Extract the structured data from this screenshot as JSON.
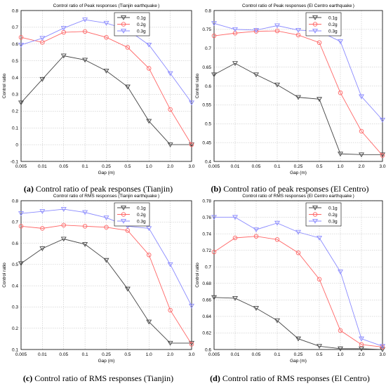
{
  "chart_data": [
    {
      "type": "line",
      "title": "Control ratio of Peak responses (Tianjin earthquake )",
      "xlabel": "Gap (m)",
      "ylabel": "Control ratio",
      "categories": [
        "0.005",
        "0.01",
        "0.05",
        "0.1",
        "0.25",
        "0.5",
        "1.0",
        "2.0",
        "3.0"
      ],
      "ylim": [
        -0.1,
        0.8
      ],
      "yticks": [
        "-0.1",
        "0",
        "0.1",
        "0.2",
        "0.3",
        "0.4",
        "0.5",
        "0.6",
        "0.7",
        "0.8"
      ],
      "grid": true,
      "legend": "top-right",
      "series": [
        {
          "name": "0.1g",
          "color": "#444444",
          "marker": "triangle-down",
          "values": [
            0.25,
            0.39,
            0.53,
            0.505,
            0.44,
            0.345,
            0.14,
            0.0,
            0.0
          ]
        },
        {
          "name": "0.2g",
          "color": "#ff6666",
          "marker": "circle",
          "values": [
            0.64,
            0.61,
            0.67,
            0.675,
            0.64,
            0.58,
            0.455,
            0.21,
            0.0
          ]
        },
        {
          "name": "0.3g",
          "color": "#8a8aff",
          "marker": "triangle-down",
          "values": [
            0.595,
            0.635,
            0.695,
            0.745,
            0.725,
            0.685,
            0.595,
            0.425,
            0.25
          ]
        }
      ],
      "caption_label": "(a)",
      "caption_text": " Control ratio of peak responses (Tianjin)"
    },
    {
      "type": "line",
      "title": "Control ratio of Peak responses (El Centro earthquake )",
      "xlabel": "Gap (m)",
      "ylabel": "Control ratio",
      "categories": [
        "0.005",
        "0.01",
        "0.05",
        "0.1",
        "0.25",
        "0.5",
        "1.0",
        "2.0",
        "3.0"
      ],
      "ylim": [
        0.4,
        0.8
      ],
      "yticks": [
        "0.4",
        "0.45",
        "0.5",
        "0.55",
        "0.6",
        "0.65",
        "0.7",
        "0.75",
        "0.8"
      ],
      "grid": true,
      "legend": "top-right",
      "series": [
        {
          "name": "0.1g",
          "color": "#444444",
          "marker": "triangle-down",
          "values": [
            0.63,
            0.66,
            0.63,
            0.603,
            0.57,
            0.565,
            0.42,
            0.418,
            0.418
          ]
        },
        {
          "name": "0.2g",
          "color": "#ff6666",
          "marker": "circle",
          "values": [
            0.733,
            0.74,
            0.745,
            0.746,
            0.735,
            0.715,
            0.582,
            0.48,
            0.416
          ]
        },
        {
          "name": "0.3g",
          "color": "#8a8aff",
          "marker": "triangle-down",
          "values": [
            0.766,
            0.75,
            0.748,
            0.76,
            0.748,
            0.745,
            0.718,
            0.572,
            0.51
          ]
        }
      ],
      "caption_label": "(b)",
      "caption_text": " Control ratio of peak responses (El Centro)"
    },
    {
      "type": "line",
      "title": "Control ratio of RMS responses (Tianjin earthquake )",
      "xlabel": "Gap (m)",
      "ylabel": "Control ratio",
      "categories": [
        "0.005",
        "0.01",
        "0.05",
        "0.1",
        "0.25",
        "0.5",
        "1.0",
        "2.0",
        "3.0"
      ],
      "ylim": [
        0.1,
        0.8
      ],
      "yticks": [
        "0.1",
        "0.2",
        "0.3",
        "0.4",
        "0.5",
        "0.6",
        "0.7",
        "0.8"
      ],
      "grid": true,
      "legend": "top-right",
      "series": [
        {
          "name": "0.1g",
          "color": "#444444",
          "marker": "triangle-down",
          "values": [
            0.505,
            0.575,
            0.62,
            0.595,
            0.52,
            0.385,
            0.23,
            0.13,
            0.13
          ]
        },
        {
          "name": "0.2g",
          "color": "#ff6666",
          "marker": "circle",
          "values": [
            0.68,
            0.67,
            0.685,
            0.68,
            0.675,
            0.66,
            0.545,
            0.285,
            0.125
          ]
        },
        {
          "name": "0.3g",
          "color": "#8a8aff",
          "marker": "triangle-down",
          "values": [
            0.74,
            0.75,
            0.76,
            0.745,
            0.72,
            0.68,
            0.67,
            0.5,
            0.305
          ]
        }
      ],
      "caption_label": "(c)",
      "caption_text": " Control ratio of RMS responses (Tianjin)"
    },
    {
      "type": "line",
      "title": "Control ratio of RMS responses (El Centro earthquake )",
      "xlabel": "Gap (m)",
      "ylabel": "Control ratio",
      "categories": [
        "0.005",
        "0.01",
        "0.05",
        "0.1",
        "0.25",
        "0.5",
        "1.0",
        "2.0",
        "3.0"
      ],
      "ylim": [
        0.6,
        0.78
      ],
      "yticks": [
        "0.6",
        "0.62",
        "0.64",
        "0.66",
        "0.68",
        "0.7",
        "0.72",
        "0.74",
        "0.76",
        "0.78"
      ],
      "grid": true,
      "legend": "top-right",
      "series": [
        {
          "name": "0.1g",
          "color": "#444444",
          "marker": "triangle-down",
          "values": [
            0.663,
            0.662,
            0.65,
            0.635,
            0.613,
            0.604,
            0.601,
            0.601,
            0.6
          ]
        },
        {
          "name": "0.2g",
          "color": "#ff6666",
          "marker": "circle",
          "values": [
            0.718,
            0.735,
            0.737,
            0.733,
            0.717,
            0.685,
            0.623,
            0.606,
            0.603
          ]
        },
        {
          "name": "0.3g",
          "color": "#8a8aff",
          "marker": "triangle-down",
          "values": [
            0.76,
            0.76,
            0.745,
            0.753,
            0.742,
            0.735,
            0.694,
            0.613,
            0.604
          ]
        }
      ],
      "caption_label": "(d)",
      "caption_text": " Control ratio of RMS responses (El Centro)"
    }
  ]
}
